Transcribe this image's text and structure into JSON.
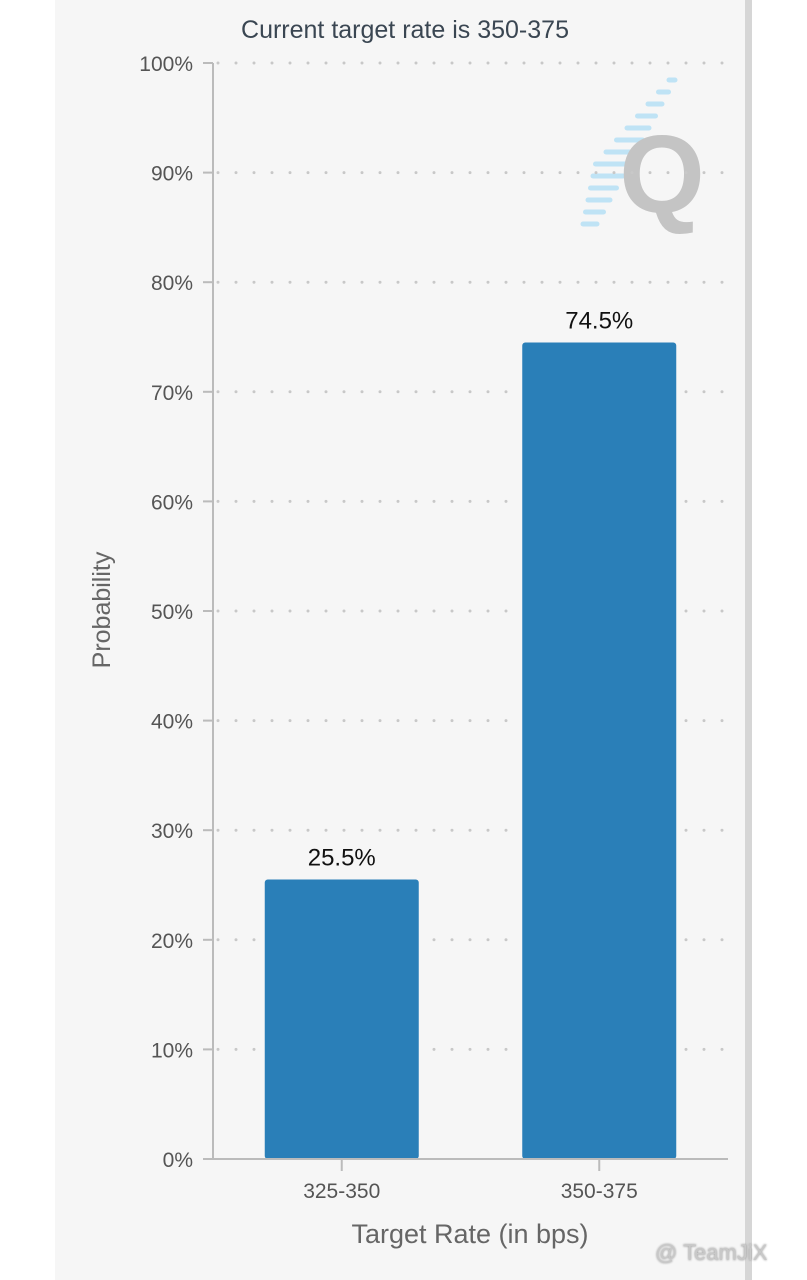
{
  "chart_data": {
    "type": "bar",
    "title": "Current target rate is 350-375",
    "xlabel": "Target Rate (in bps)",
    "ylabel": "Probability",
    "categories": [
      "325-350",
      "350-375"
    ],
    "values": [
      25.5,
      74.5
    ],
    "data_labels": [
      "25.5%",
      "74.5%"
    ],
    "ylim": [
      0,
      100
    ],
    "yticks": [
      "0%",
      "10%",
      "20%",
      "30%",
      "40%",
      "50%",
      "60%",
      "70%",
      "80%",
      "90%",
      "100%"
    ],
    "grid": true,
    "bar_color": "#2a7fb8"
  },
  "watermark": {
    "text": "@ TeamJiX"
  },
  "logo": {
    "letter": "Q"
  }
}
